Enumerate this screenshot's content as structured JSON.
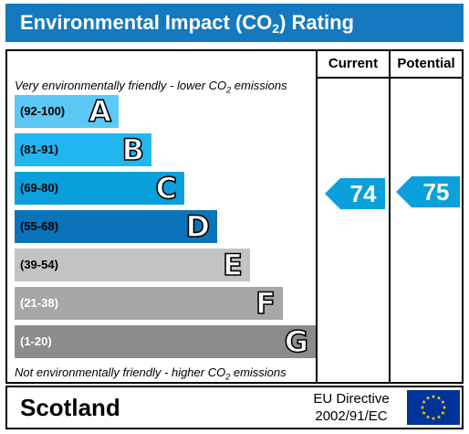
{
  "title": {
    "pre": "Environmental Impact (CO",
    "sub": "2",
    "post": ") Rating"
  },
  "columns": {
    "current": "Current",
    "potential": "Potential"
  },
  "notes": {
    "top": {
      "pre": "Very environmentally friendly - lower CO",
      "sub": "2",
      "post": " emissions"
    },
    "bottom": {
      "pre": "Not environmentally friendly - higher CO",
      "sub": "2",
      "post": " emissions"
    }
  },
  "bands": [
    {
      "range": "(92-100)",
      "letter": "A",
      "color": "#5bc8f5",
      "range_color": "#000000"
    },
    {
      "range": "(81-91)",
      "letter": "B",
      "color": "#21b6ef",
      "range_color": "#000000"
    },
    {
      "range": "(69-80)",
      "letter": "C",
      "color": "#0aa0dc",
      "range_color": "#000000"
    },
    {
      "range": "(55-68)",
      "letter": "D",
      "color": "#0a73b9",
      "range_color": "#000000"
    },
    {
      "range": "(39-54)",
      "letter": "E",
      "color": "#c3c3c3",
      "range_color": "#000000"
    },
    {
      "range": "(21-38)",
      "letter": "F",
      "color": "#a7a7a7",
      "range_color": "#ffffff"
    },
    {
      "range": "(1-20)",
      "letter": "G",
      "color": "#8c8c8c",
      "range_color": "#ffffff"
    }
  ],
  "ratings": {
    "current": {
      "value": "74",
      "band": "C",
      "color": "#0aa0dc"
    },
    "potential": {
      "value": "75",
      "band": "C",
      "color": "#0aa0dc"
    }
  },
  "footer": {
    "region": "Scotland",
    "directive_line1": "EU Directive",
    "directive_line2": "2002/91/EC",
    "flag_icon": "eu-flag-icon"
  }
}
